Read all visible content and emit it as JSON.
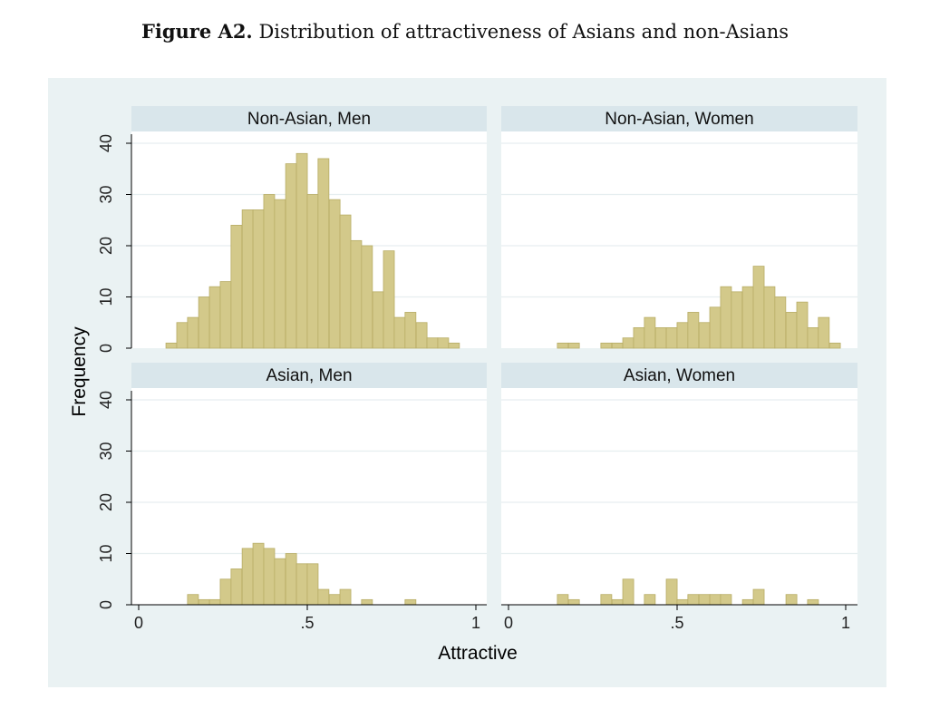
{
  "figure": {
    "label": "Figure A2.",
    "caption": "Distribution of attractiveness of Asians and non-Asians"
  },
  "colors": {
    "outer_background": "#eaf2f3",
    "plot_background": "#ffffff",
    "strip_background": "#d9e6eb",
    "bar_fill": "#d3c98a",
    "bar_stroke": "#b8ad66",
    "gridline": "#e6eef0",
    "axis": "#000000"
  },
  "chart_data": {
    "type": "bar",
    "subtype": "histogram-grid",
    "xlabel": "Attractive",
    "ylabel": "Frequency",
    "xlim": [
      0,
      1
    ],
    "ylim": [
      0,
      40
    ],
    "xticks": [
      0,
      0.5,
      1
    ],
    "xtick_labels": [
      "0",
      ".5",
      "1"
    ],
    "yticks": [
      0,
      10,
      20,
      30,
      40
    ],
    "ytick_labels": [
      "0",
      "10",
      "20",
      "30",
      "40"
    ],
    "grid": true,
    "bin_width": 0.0323,
    "panels": [
      {
        "title": "Non-Asian, Men",
        "bins": [
          {
            "x": 0.097,
            "count": 1
          },
          {
            "x": 0.129,
            "count": 5
          },
          {
            "x": 0.161,
            "count": 6
          },
          {
            "x": 0.194,
            "count": 10
          },
          {
            "x": 0.226,
            "count": 12
          },
          {
            "x": 0.258,
            "count": 13
          },
          {
            "x": 0.29,
            "count": 24
          },
          {
            "x": 0.323,
            "count": 27
          },
          {
            "x": 0.355,
            "count": 27
          },
          {
            "x": 0.387,
            "count": 30
          },
          {
            "x": 0.419,
            "count": 29
          },
          {
            "x": 0.452,
            "count": 36
          },
          {
            "x": 0.484,
            "count": 38
          },
          {
            "x": 0.516,
            "count": 30
          },
          {
            "x": 0.548,
            "count": 37
          },
          {
            "x": 0.581,
            "count": 29
          },
          {
            "x": 0.613,
            "count": 26
          },
          {
            "x": 0.645,
            "count": 21
          },
          {
            "x": 0.677,
            "count": 20
          },
          {
            "x": 0.71,
            "count": 11
          },
          {
            "x": 0.742,
            "count": 19
          },
          {
            "x": 0.774,
            "count": 6
          },
          {
            "x": 0.806,
            "count": 7
          },
          {
            "x": 0.839,
            "count": 5
          },
          {
            "x": 0.871,
            "count": 2
          },
          {
            "x": 0.903,
            "count": 2
          },
          {
            "x": 0.935,
            "count": 1
          }
        ]
      },
      {
        "title": "Non-Asian, Women",
        "bins": [
          {
            "x": 0.161,
            "count": 1
          },
          {
            "x": 0.194,
            "count": 1
          },
          {
            "x": 0.29,
            "count": 1
          },
          {
            "x": 0.323,
            "count": 1
          },
          {
            "x": 0.355,
            "count": 2
          },
          {
            "x": 0.387,
            "count": 4
          },
          {
            "x": 0.419,
            "count": 6
          },
          {
            "x": 0.452,
            "count": 4
          },
          {
            "x": 0.484,
            "count": 4
          },
          {
            "x": 0.516,
            "count": 5
          },
          {
            "x": 0.548,
            "count": 7
          },
          {
            "x": 0.581,
            "count": 5
          },
          {
            "x": 0.613,
            "count": 8
          },
          {
            "x": 0.645,
            "count": 12
          },
          {
            "x": 0.677,
            "count": 11
          },
          {
            "x": 0.71,
            "count": 12
          },
          {
            "x": 0.742,
            "count": 16
          },
          {
            "x": 0.774,
            "count": 12
          },
          {
            "x": 0.806,
            "count": 10
          },
          {
            "x": 0.839,
            "count": 7
          },
          {
            "x": 0.871,
            "count": 9
          },
          {
            "x": 0.903,
            "count": 4
          },
          {
            "x": 0.935,
            "count": 6
          },
          {
            "x": 0.968,
            "count": 1
          }
        ]
      },
      {
        "title": "Asian, Men",
        "bins": [
          {
            "x": 0.161,
            "count": 2
          },
          {
            "x": 0.194,
            "count": 1
          },
          {
            "x": 0.226,
            "count": 1
          },
          {
            "x": 0.258,
            "count": 5
          },
          {
            "x": 0.29,
            "count": 7
          },
          {
            "x": 0.323,
            "count": 11
          },
          {
            "x": 0.355,
            "count": 12
          },
          {
            "x": 0.387,
            "count": 11
          },
          {
            "x": 0.419,
            "count": 9
          },
          {
            "x": 0.452,
            "count": 10
          },
          {
            "x": 0.484,
            "count": 8
          },
          {
            "x": 0.516,
            "count": 8
          },
          {
            "x": 0.548,
            "count": 3
          },
          {
            "x": 0.581,
            "count": 2
          },
          {
            "x": 0.613,
            "count": 3
          },
          {
            "x": 0.677,
            "count": 1
          },
          {
            "x": 0.806,
            "count": 1
          }
        ]
      },
      {
        "title": "Asian, Women",
        "bins": [
          {
            "x": 0.161,
            "count": 2
          },
          {
            "x": 0.194,
            "count": 1
          },
          {
            "x": 0.29,
            "count": 2
          },
          {
            "x": 0.323,
            "count": 1
          },
          {
            "x": 0.355,
            "count": 5
          },
          {
            "x": 0.419,
            "count": 2
          },
          {
            "x": 0.484,
            "count": 5
          },
          {
            "x": 0.516,
            "count": 1
          },
          {
            "x": 0.548,
            "count": 2
          },
          {
            "x": 0.581,
            "count": 2
          },
          {
            "x": 0.613,
            "count": 2
          },
          {
            "x": 0.645,
            "count": 2
          },
          {
            "x": 0.71,
            "count": 1
          },
          {
            "x": 0.742,
            "count": 3
          },
          {
            "x": 0.839,
            "count": 2
          },
          {
            "x": 0.903,
            "count": 1
          }
        ]
      }
    ]
  }
}
